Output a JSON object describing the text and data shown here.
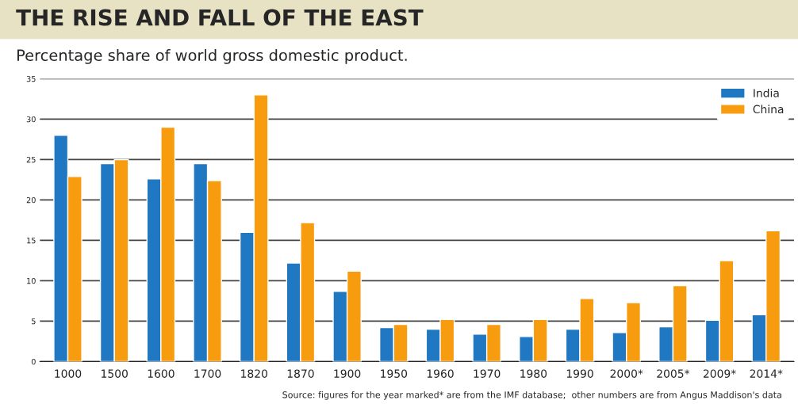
{
  "chart_data": {
    "type": "bar",
    "title": "THE RISE AND FALL OF THE EAST",
    "subtitle": "Percentage share of world gross domestic product.",
    "categories": [
      "1000",
      "1500",
      "1600",
      "1700",
      "1820",
      "1870",
      "1900",
      "1950",
      "1960",
      "1970",
      "1980",
      "1990",
      "2000*",
      "2005*",
      "2009*",
      "2014*"
    ],
    "series": [
      {
        "name": "India",
        "color": "#1f78c1",
        "values": [
          28,
          24.5,
          22.6,
          24.5,
          16,
          12.2,
          8.7,
          4.2,
          4,
          3.4,
          3.1,
          4,
          3.6,
          4.3,
          5.1,
          5.8
        ]
      },
      {
        "name": "China",
        "color": "#f79c0e",
        "values": [
          22.9,
          25,
          29,
          22.4,
          33,
          17.2,
          11.2,
          4.6,
          5.2,
          4.6,
          5.2,
          7.8,
          7.3,
          9.4,
          12.5,
          16.2
        ]
      }
    ],
    "ylim": [
      0,
      35
    ],
    "yticks": [
      0,
      5,
      10,
      15,
      20,
      25,
      30,
      35
    ],
    "grid": "y",
    "legend": "top right",
    "annotations": [
      "Source: figures for the year marked* are from the IMF database;  other numbers are from Angus Maddison's data"
    ]
  }
}
